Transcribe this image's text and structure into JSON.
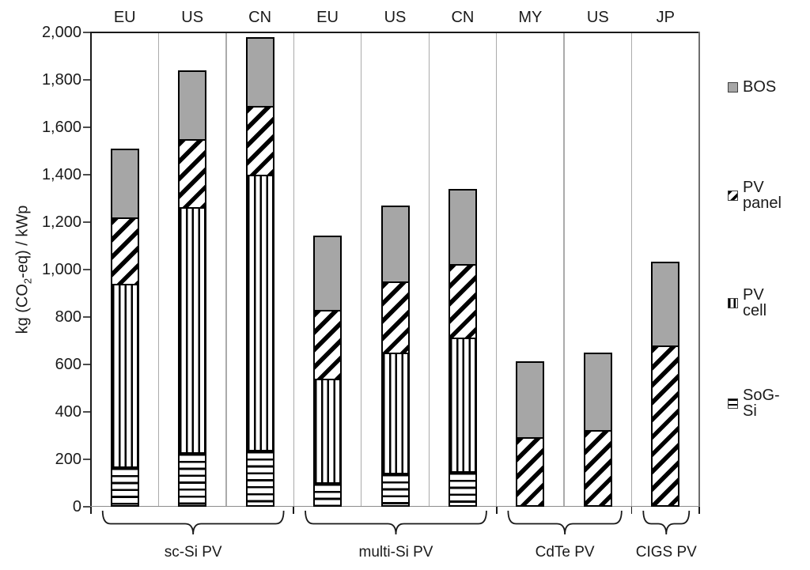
{
  "chart_data": {
    "type": "bar",
    "stacked": true,
    "title": "",
    "ylabel": "kg (CO2-eq) / kWp",
    "ylabel_parts": {
      "pre": "kg (CO",
      "sub": "2",
      "post": "-eq) / kWp"
    },
    "ylim": [
      0,
      2000
    ],
    "ytick_step": 200,
    "ytick_labels": [
      "0",
      "200",
      "400",
      "600",
      "800",
      "1,000",
      "1,200",
      "1,400",
      "1,600",
      "1,800",
      "2,000"
    ],
    "grid": "vertical-column-separators",
    "legend_position": "right",
    "categories": [
      "EU",
      "US",
      "CN",
      "EU",
      "US",
      "CN",
      "MY",
      "US",
      "JP"
    ],
    "groups": [
      {
        "label": "sc-Si PV",
        "span": 3
      },
      {
        "label": "multi-Si PV",
        "span": 3
      },
      {
        "label": "CdTe PV",
        "span": 2
      },
      {
        "label": "CIGS PV",
        "span": 1
      }
    ],
    "series": [
      {
        "name": "SoG-Si",
        "pattern": "horizontal-stripes",
        "values": [
          170,
          230,
          240,
          105,
          145,
          150,
          0,
          0,
          0
        ]
      },
      {
        "name": "PV cell",
        "pattern": "vertical-stripes",
        "values": [
          770,
          1035,
          1160,
          435,
          505,
          565,
          0,
          0,
          0
        ]
      },
      {
        "name": "PV panel",
        "pattern": "diagonal-stripes",
        "values": [
          280,
          285,
          290,
          290,
          300,
          310,
          295,
          325,
          680
        ]
      },
      {
        "name": "BOS",
        "pattern": "solid-gray",
        "values": [
          290,
          290,
          290,
          315,
          320,
          315,
          320,
          325,
          355
        ]
      }
    ],
    "totals": [
      1510,
      1840,
      1980,
      1145,
      1270,
      1340,
      615,
      650,
      1035
    ],
    "legend": [
      {
        "label": "BOS",
        "pattern": "solid-gray"
      },
      {
        "label": "PV panel",
        "pattern": "diagonal-stripes"
      },
      {
        "label": "PV cell",
        "pattern": "vertical-stripes"
      },
      {
        "label": "SoG-Si",
        "pattern": "horizontal-stripes"
      }
    ],
    "colors": {
      "bos_gray": "#a6a6a6",
      "hatch_black": "#000000",
      "separator_gray": "#ababab",
      "axis_black": "#1a1a1a"
    }
  }
}
